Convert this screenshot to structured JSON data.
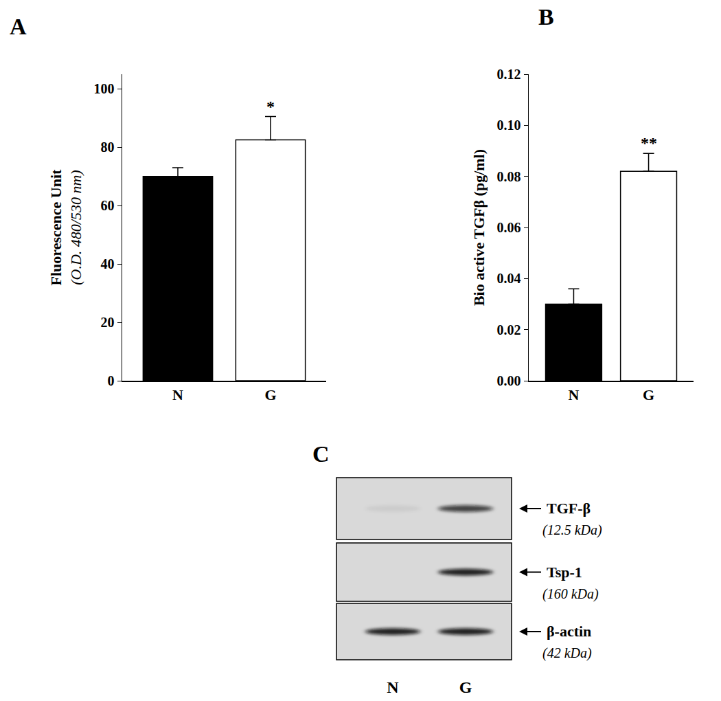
{
  "chart_data": [
    {
      "type": "bar",
      "title": "A",
      "categories": [
        "N",
        "G"
      ],
      "values": [
        70,
        82.5
      ],
      "error": [
        3,
        8
      ],
      "colors": [
        "#000000",
        "#ffffff"
      ],
      "ylabel": [
        "Fluorescence Unit",
        "(O.D. 480/530 nm)"
      ],
      "ylim": [
        0,
        105
      ],
      "yticks": [
        0,
        20,
        40,
        60,
        80,
        100
      ],
      "grid": false,
      "annotations": [
        {
          "x": "G",
          "text": "*"
        }
      ]
    },
    {
      "type": "bar",
      "title": "B",
      "categories": [
        "N",
        "G"
      ],
      "values": [
        0.03,
        0.082
      ],
      "error": [
        0.006,
        0.007
      ],
      "colors": [
        "#000000",
        "#ffffff"
      ],
      "ylabel": [
        "Bio active TGFβ (pg/ml)"
      ],
      "ylim": [
        0,
        0.12
      ],
      "yticks": [
        {
          "value": 0,
          "label": "0.00"
        },
        {
          "value": 0.02,
          "label": "0.02"
        },
        {
          "value": 0.04,
          "label": "0.04"
        },
        {
          "value": 0.06,
          "label": "0.06"
        },
        {
          "value": 0.08,
          "label": "0.08"
        },
        {
          "value": 0.1,
          "label": "0.10"
        },
        {
          "value": 0.12,
          "label": "0.12"
        }
      ],
      "grid": false,
      "annotations": [
        {
          "x": "G",
          "text": "**"
        }
      ]
    }
  ],
  "blot": {
    "title": "C",
    "lanes": [
      "N",
      "G"
    ],
    "rows": [
      {
        "label": "TGF-β",
        "size": "(12.5 kDa)",
        "bands": [
          0.06,
          0.75
        ]
      },
      {
        "label": "Tsp-1",
        "size": "(160 kDa)",
        "bands": [
          0.0,
          0.9
        ]
      },
      {
        "label": "β-actin",
        "size": "(42 kDa)",
        "bands": [
          0.9,
          0.9
        ]
      }
    ]
  }
}
